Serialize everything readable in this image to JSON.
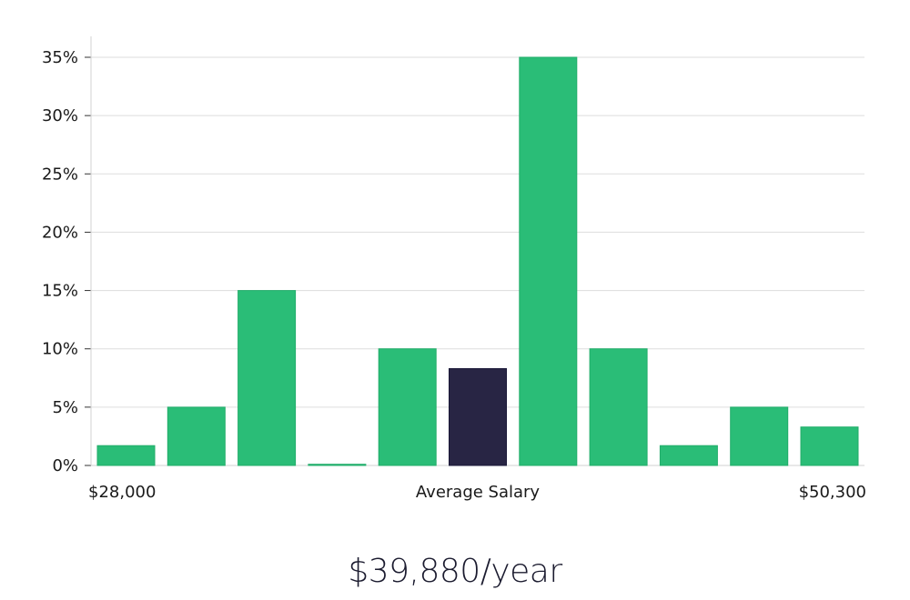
{
  "chart_data": {
    "type": "bar",
    "values": [
      1.7,
      5.0,
      15.0,
      0.1,
      10.0,
      8.3,
      35.0,
      10.0,
      1.7,
      5.0,
      3.3
    ],
    "highlight_index": 5,
    "ylim": [
      0,
      35
    ],
    "yticks": [
      0,
      5,
      10,
      15,
      20,
      25,
      30,
      35
    ],
    "ytick_suffix": "%",
    "x_min_label": "$28,000",
    "x_center_label": "Average Salary",
    "x_max_label": "$50,300",
    "grid": true,
    "colors": {
      "bar": "#2abd77",
      "highlight": "#282544",
      "grid": "#dddddd",
      "axis": "#d0d0d0"
    }
  },
  "headline": "$39,880/year"
}
